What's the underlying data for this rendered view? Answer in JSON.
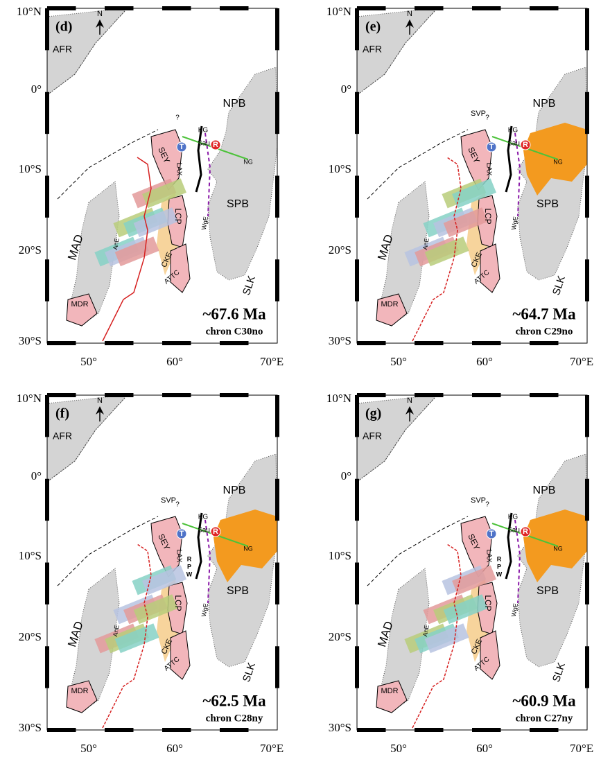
{
  "panels": [
    {
      "panel": "(d)",
      "age": "~67.6 Ma",
      "chron": "chron C30no",
      "lat_labels": [
        "10°N",
        "0°",
        "10°S",
        "20°S",
        "30°S"
      ],
      "lon_labels": [
        "50°",
        "60°",
        "70°E"
      ],
      "labels": {
        "north": "N",
        "afr": "AFR",
        "npb": "NPB",
        "spb": "SPB",
        "mad": "MAD",
        "mdr": "MDR",
        "slk": "SLK",
        "lcp": "LCP",
        "sey": "SEY",
        "lax": "LAX",
        "cke": "CKE",
        "attc": "ATTC",
        "kg": "KG",
        "sau": "Sau",
        "ng": "NG",
        "t": "T",
        "r": "R",
        "ane": "AnE",
        "wge": "WgE",
        "q": "?"
      }
    },
    {
      "panel": "(e)",
      "age": "~64.7 Ma",
      "chron": "chron C29no",
      "lat_labels": [
        "10°N",
        "0°",
        "10°S",
        "20°S",
        "30°S"
      ],
      "lon_labels": [
        "50°",
        "60°",
        "70°E"
      ],
      "labels": {
        "north": "N",
        "afr": "AFR",
        "npb": "NPB",
        "spb": "SPB",
        "mad": "MAD",
        "mdr": "MDR",
        "slk": "SLK",
        "lcp": "LCP",
        "sey": "SEY",
        "lax": "LAX",
        "cke": "CKE",
        "attc": "ATTC",
        "kg": "KG",
        "sau": "Sau",
        "ng": "NG",
        "t": "T",
        "r": "R",
        "ane": "AnE",
        "wge": "WgE",
        "svp": "SVP",
        "q": "?"
      }
    },
    {
      "panel": "(f)",
      "age": "~62.5 Ma",
      "chron": "chron C28ny",
      "lat_labels": [
        "10°N",
        "0°",
        "10°S",
        "20°S",
        "30°S"
      ],
      "lon_labels": [
        "50°",
        "60°",
        "70°E"
      ],
      "labels": {
        "north": "N",
        "afr": "AFR",
        "npb": "NPB",
        "spb": "SPB",
        "mad": "MAD",
        "mdr": "MDR",
        "slk": "SLK",
        "lcp": "LCP",
        "sey": "SEY",
        "lax": "LAX",
        "cke": "CKE",
        "attc": "ATTC",
        "kg": "KG",
        "sau": "Sau",
        "ng": "NG",
        "t": "T",
        "r": "R",
        "ane": "AnE",
        "wge": "WgE",
        "svp": "SVP",
        "rr": "R",
        "pp": "P",
        "ww": "W",
        "q": "?"
      }
    },
    {
      "panel": "(g)",
      "age": "~60.9 Ma",
      "chron": "chron C27ny",
      "lat_labels": [
        "10°N",
        "0°",
        "10°S",
        "20°S",
        "30°S"
      ],
      "lon_labels": [
        "50°",
        "60°",
        "70°E"
      ],
      "labels": {
        "north": "N",
        "afr": "AFR",
        "npb": "NPB",
        "spb": "SPB",
        "mad": "MAD",
        "mdr": "MDR",
        "slk": "SLK",
        "lcp": "LCP",
        "sey": "SEY",
        "lax": "LAX",
        "cke": "CKE",
        "attc": "ATTC",
        "kg": "KG",
        "sau": "Sau",
        "ng": "NG",
        "t": "T",
        "r": "R",
        "ane": "AnE",
        "wge": "WgE",
        "svp": "SVP",
        "rr": "R",
        "pp": "P",
        "ww": "W",
        "q": "?"
      }
    }
  ]
}
